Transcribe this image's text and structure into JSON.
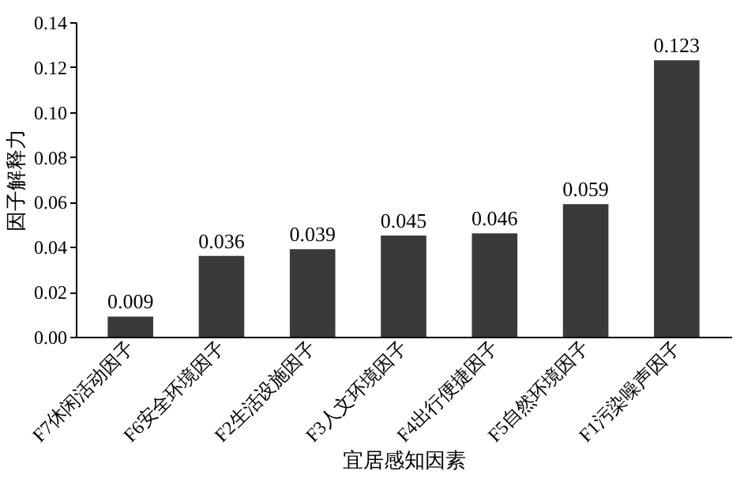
{
  "chart_data": {
    "type": "bar",
    "xlabel": "宜居感知因素",
    "ylabel": "因子解释力",
    "categories": [
      "F7休闲活动因子",
      "F6安全环境因子",
      "F2生活设施因子",
      "F3人文环境因子",
      "F4出行便捷因子",
      "F5自然环境因子",
      "F1污染噪声因子"
    ],
    "values": [
      0.009,
      0.036,
      0.039,
      0.045,
      0.046,
      0.059,
      0.123
    ],
    "color": "#3a3a3a",
    "ylim": [
      0,
      0.14
    ],
    "yticks": [
      {
        "value": 0,
        "label": "0.00"
      },
      {
        "value": 0.02,
        "label": "0.02"
      },
      {
        "value": 0.04,
        "label": "0.04"
      },
      {
        "value": 0.06,
        "label": "0.06"
      },
      {
        "value": 0.08,
        "label": "0.08"
      },
      {
        "value": 0.1,
        "label": "0.10"
      },
      {
        "value": 0.12,
        "label": "0.12"
      },
      {
        "value": 0.14,
        "label": "0.14"
      }
    ],
    "data_labels": true,
    "grid": false
  }
}
